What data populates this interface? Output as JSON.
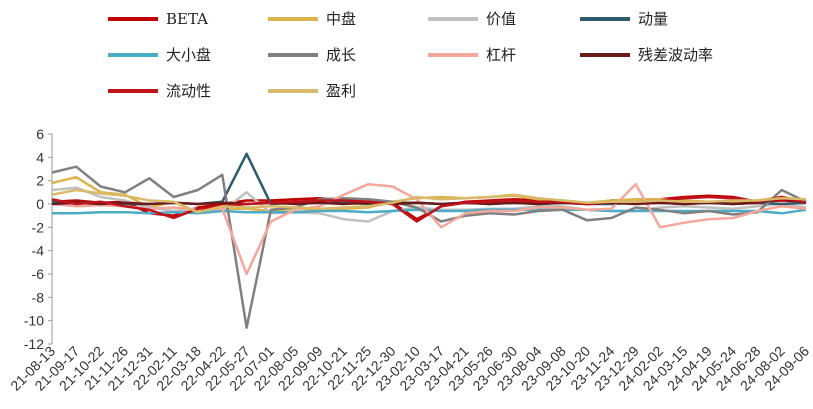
{
  "chart_data": {
    "type": "line",
    "title": "",
    "xlabel": "",
    "ylabel": "",
    "ylim": [
      -12,
      6
    ],
    "yticks": [
      6,
      4,
      2,
      0,
      -2,
      -4,
      -6,
      -8,
      -10,
      -12
    ],
    "grid": false,
    "legend_placement": "top",
    "x_tick_labels": [
      "21-08-13",
      "21-09-17",
      "21-10-22",
      "21-11-26",
      "21-12-31",
      "22-02-11",
      "22-03-18",
      "22-04-22",
      "22-05-27",
      "22-07-01",
      "22-08-05",
      "22-09-09",
      "22-10-21",
      "22-11-25",
      "22-12-30",
      "23-02-10",
      "23-03-17",
      "23-04-21",
      "23-05-26",
      "23-06-30",
      "23-08-04",
      "23-09-08",
      "23-10-20",
      "23-11-24",
      "23-12-29",
      "24-02-02",
      "24-03-15",
      "24-04-19",
      "24-05-24",
      "24-06-28",
      "24-08-02",
      "24-09-06"
    ],
    "series": [
      {
        "name": "BETA",
        "color": "#c00000",
        "values": [
          0.2,
          0.3,
          0.1,
          0.2,
          -0.8,
          -1.0,
          -0.3,
          0.0,
          0.3,
          0.3,
          0.4,
          0.5,
          0.3,
          0.2,
          0.1,
          -1.3,
          -0.2,
          0.2,
          0.3,
          0.4,
          0.3,
          0.2,
          0.0,
          0.3,
          0.3,
          0.4,
          0.6,
          0.7,
          0.6,
          0.2,
          0.3,
          0.2
        ]
      },
      {
        "name": "中盘",
        "color": "#dcb44a",
        "values": [
          1.8,
          2.3,
          1.0,
          0.8,
          -0.3,
          0.2,
          -0.8,
          -0.4,
          -0.4,
          -0.6,
          -0.4,
          -0.5,
          -0.4,
          -0.3,
          0.2,
          0.5,
          0.6,
          0.5,
          0.6,
          0.7,
          0.4,
          0.3,
          0.1,
          0.3,
          0.4,
          0.4,
          0.3,
          0.2,
          0.2,
          0.3,
          0.6,
          0.3
        ]
      },
      {
        "name": "价值",
        "color": "#c0c0c0",
        "values": [
          1.2,
          1.4,
          0.6,
          0.3,
          -0.3,
          -0.6,
          -0.4,
          -0.6,
          1.0,
          -0.8,
          -0.7,
          -0.8,
          -1.3,
          -1.5,
          -0.6,
          -0.3,
          -0.5,
          -0.5,
          -0.4,
          -0.4,
          -0.2,
          -0.2,
          -0.5,
          -0.6,
          -0.6,
          -0.3,
          -0.2,
          -0.3,
          -0.4,
          -0.2,
          0.0,
          -0.3
        ]
      },
      {
        "name": "动量",
        "color": "#2e5a6e",
        "values": [
          0.2,
          0.1,
          0.1,
          0.0,
          0.0,
          0.1,
          0.0,
          0.2,
          4.3,
          0.0,
          0.1,
          0.2,
          0.1,
          0.0,
          0.1,
          0.1,
          0.0,
          0.1,
          0.0,
          0.1,
          0.0,
          0.1,
          0.0,
          0.0,
          0.1,
          0.1,
          0.0,
          0.1,
          0.0,
          0.1,
          0.0,
          0.1
        ]
      },
      {
        "name": "大小盘",
        "color": "#4bacc6",
        "values": [
          -0.8,
          -0.8,
          -0.7,
          -0.7,
          -0.8,
          -0.7,
          -0.8,
          -0.6,
          -0.7,
          -0.7,
          -0.7,
          -0.6,
          -0.6,
          -0.7,
          -0.6,
          -0.5,
          -0.6,
          -0.6,
          -0.5,
          -0.5,
          -0.5,
          -0.5,
          -0.5,
          -0.6,
          -0.6,
          -0.6,
          -0.6,
          -0.6,
          -0.6,
          -0.6,
          -0.8,
          -0.5
        ]
      },
      {
        "name": "成长",
        "color": "#808080",
        "values": [
          2.7,
          3.2,
          1.5,
          1.0,
          2.2,
          0.6,
          1.2,
          2.5,
          -10.6,
          -0.5,
          -0.3,
          0.4,
          0.5,
          0.4,
          0.2,
          -0.3,
          -1.5,
          -1.0,
          -0.8,
          -0.9,
          -0.6,
          -0.5,
          -1.4,
          -1.2,
          -0.3,
          -0.5,
          -0.8,
          -0.6,
          -0.9,
          -0.7,
          1.2,
          0.2
        ]
      },
      {
        "name": "杠杆",
        "color": "#f4a79a",
        "values": [
          0.0,
          -0.2,
          -0.1,
          -0.2,
          -0.4,
          -0.3,
          -0.5,
          -0.4,
          -6.0,
          -1.5,
          -0.5,
          -0.2,
          0.8,
          1.7,
          1.5,
          0.4,
          -2.0,
          -0.8,
          -0.6,
          -0.6,
          -0.3,
          -0.3,
          -0.5,
          -0.4,
          1.7,
          -2.0,
          -1.6,
          -1.3,
          -1.2,
          -0.6,
          -0.2,
          -0.4
        ]
      },
      {
        "name": "残差波动率",
        "color": "#6b1a1a",
        "values": [
          0.0,
          0.1,
          0.0,
          0.1,
          0.0,
          0.1,
          0.0,
          0.1,
          0.0,
          0.1,
          0.0,
          0.1,
          0.0,
          0.1,
          0.0,
          0.1,
          0.0,
          0.1,
          0.0,
          0.1,
          0.0,
          0.1,
          0.0,
          0.1,
          0.0,
          0.1,
          0.0,
          0.1,
          0.0,
          0.1,
          0.5,
          0.1
        ]
      },
      {
        "name": "流动性",
        "color": "#c0121b",
        "values": [
          0.4,
          0.0,
          0.2,
          -0.2,
          -0.5,
          -1.2,
          -0.4,
          -0.2,
          0.0,
          0.1,
          0.2,
          0.3,
          0.3,
          0.2,
          0.0,
          -1.5,
          -0.2,
          0.1,
          0.2,
          0.3,
          0.2,
          0.2,
          0.0,
          0.2,
          0.2,
          0.3,
          0.5,
          0.6,
          0.5,
          0.2,
          0.6,
          0.1
        ]
      },
      {
        "name": "盈利",
        "color": "#d9b96a",
        "values": [
          0.8,
          1.2,
          0.9,
          0.7,
          0.3,
          0.2,
          -0.7,
          -0.2,
          -0.3,
          -0.2,
          -0.3,
          -0.4,
          -0.3,
          -0.2,
          0.1,
          0.6,
          0.4,
          0.5,
          0.6,
          0.8,
          0.5,
          0.3,
          0.1,
          0.2,
          0.2,
          0.3,
          0.2,
          0.2,
          0.3,
          0.3,
          0.5,
          0.4
        ]
      }
    ]
  }
}
